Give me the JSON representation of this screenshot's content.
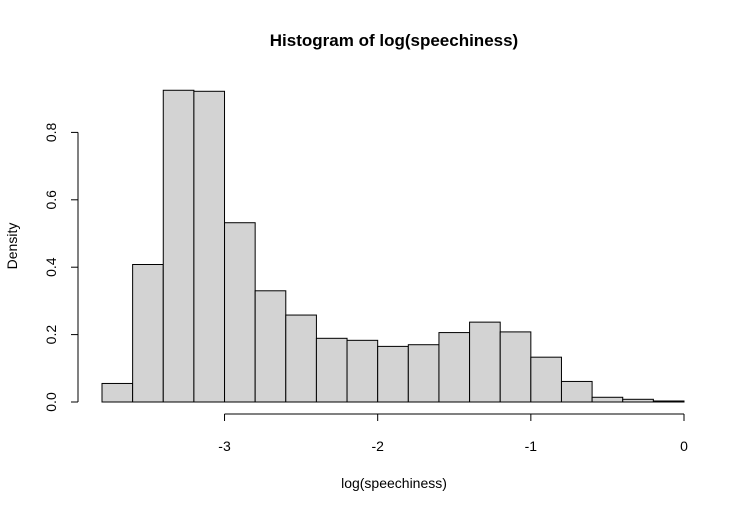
{
  "chart_data": {
    "type": "bar",
    "title": "Histogram of log(speechiness)",
    "xlabel": "log(speechiness)",
    "ylabel": "Density",
    "xlim": [
      -3.8,
      0.0
    ],
    "ylim": [
      0.0,
      0.93
    ],
    "bin_width": 0.2,
    "bins": [
      {
        "x0": -3.8,
        "x1": -3.6,
        "value": 0.055
      },
      {
        "x0": -3.6,
        "x1": -3.4,
        "value": 0.408
      },
      {
        "x0": -3.4,
        "x1": -3.2,
        "value": 0.925
      },
      {
        "x0": -3.2,
        "x1": -3.0,
        "value": 0.922
      },
      {
        "x0": -3.0,
        "x1": -2.8,
        "value": 0.532
      },
      {
        "x0": -2.8,
        "x1": -2.6,
        "value": 0.33
      },
      {
        "x0": -2.6,
        "x1": -2.4,
        "value": 0.258
      },
      {
        "x0": -2.4,
        "x1": -2.2,
        "value": 0.189
      },
      {
        "x0": -2.2,
        "x1": -2.0,
        "value": 0.183
      },
      {
        "x0": -2.0,
        "x1": -1.8,
        "value": 0.165
      },
      {
        "x0": -1.8,
        "x1": -1.6,
        "value": 0.17
      },
      {
        "x0": -1.6,
        "x1": -1.4,
        "value": 0.206
      },
      {
        "x0": -1.4,
        "x1": -1.2,
        "value": 0.237
      },
      {
        "x0": -1.2,
        "x1": -1.0,
        "value": 0.208
      },
      {
        "x0": -1.0,
        "x1": -0.8,
        "value": 0.133
      },
      {
        "x0": -0.8,
        "x1": -0.6,
        "value": 0.061
      },
      {
        "x0": -0.6,
        "x1": -0.4,
        "value": 0.014
      },
      {
        "x0": -0.4,
        "x1": -0.2,
        "value": 0.008
      },
      {
        "x0": -0.2,
        "x1": 0.0,
        "value": 0.003
      }
    ],
    "x_ticks": [
      {
        "value": -3,
        "label": "-3"
      },
      {
        "value": -2,
        "label": "-2"
      },
      {
        "value": -1,
        "label": "-1"
      },
      {
        "value": 0,
        "label": "0"
      }
    ],
    "y_ticks": [
      {
        "value": 0.0,
        "label": "0.0"
      },
      {
        "value": 0.2,
        "label": "0.2"
      },
      {
        "value": 0.4,
        "label": "0.4"
      },
      {
        "value": 0.6,
        "label": "0.6"
      },
      {
        "value": 0.8,
        "label": "0.8"
      }
    ],
    "grid": false,
    "legend": "none",
    "colors": {
      "bar_fill": "#d3d3d3",
      "bar_stroke": "#000000"
    }
  }
}
